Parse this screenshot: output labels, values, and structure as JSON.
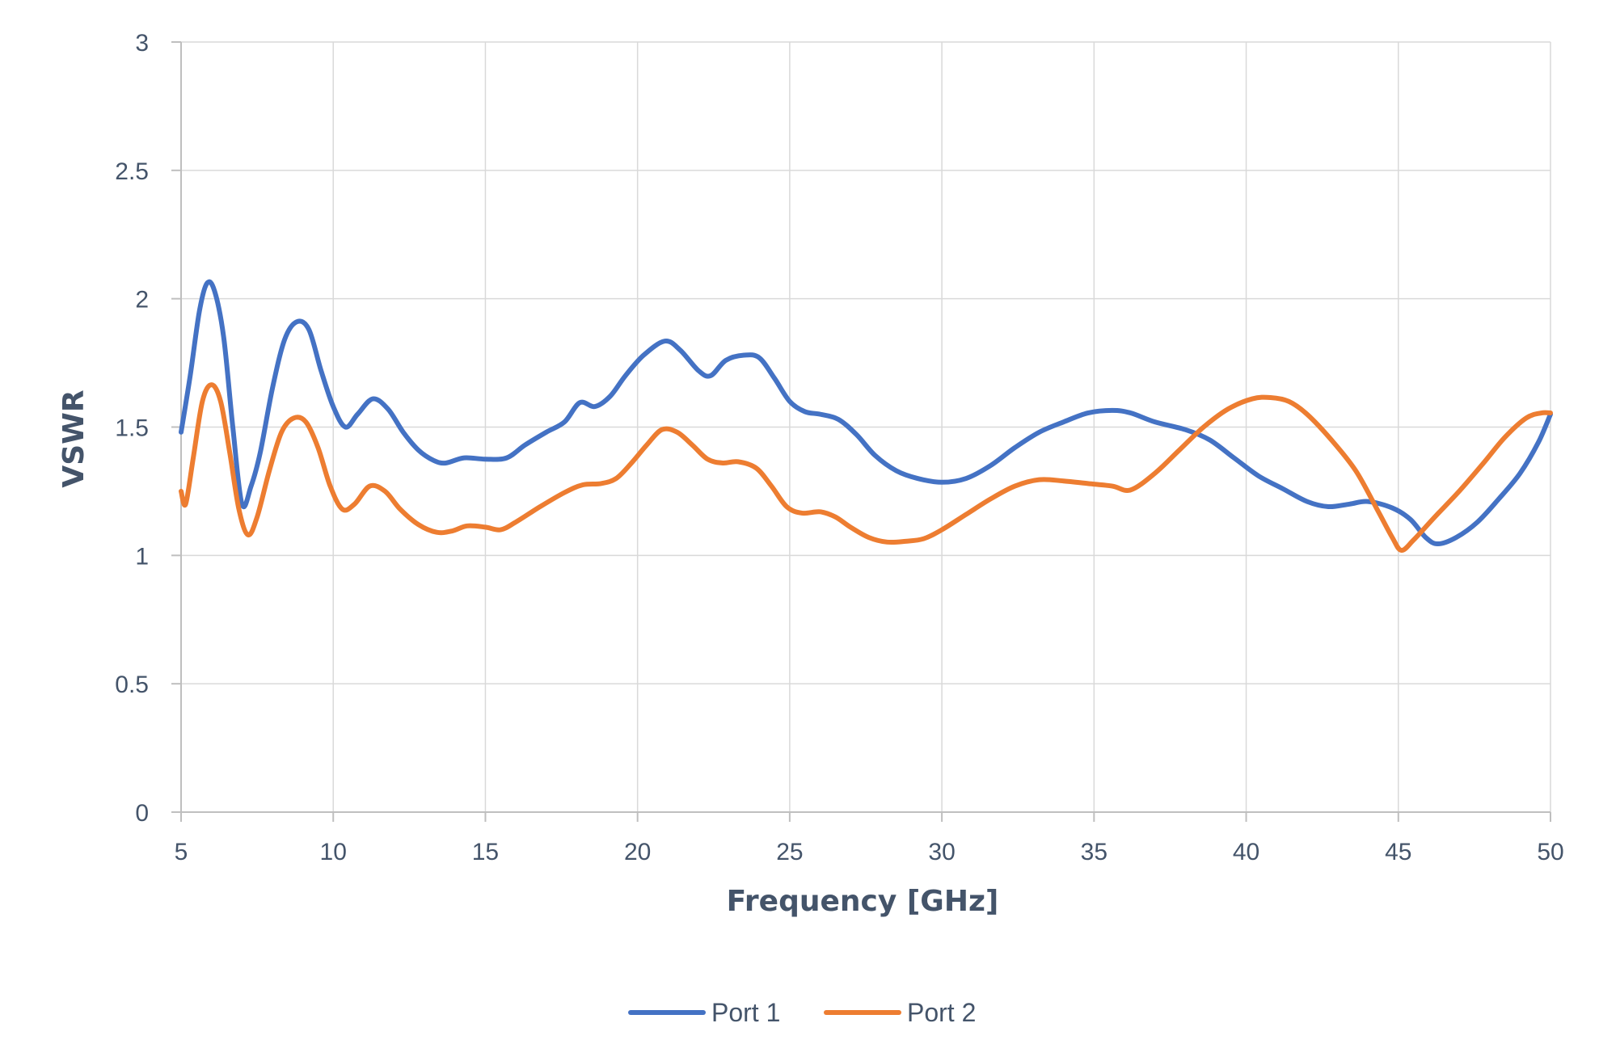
{
  "chart_data": {
    "type": "line",
    "title": "",
    "xlabel": "Frequency [GHz]",
    "ylabel": "VSWR",
    "xlim": [
      5,
      50
    ],
    "ylim": [
      0,
      3
    ],
    "xticks": [
      5,
      10,
      15,
      20,
      25,
      30,
      35,
      40,
      45,
      50
    ],
    "yticks": [
      0,
      0.5,
      1,
      1.5,
      2,
      2.5,
      3
    ],
    "xtick_labels": [
      "5",
      "10",
      "15",
      "20",
      "25",
      "30",
      "35",
      "40",
      "45",
      "50"
    ],
    "ytick_labels": [
      "0",
      "0.5",
      "1",
      "1.5",
      "2",
      "2.5",
      "3"
    ],
    "grid": true,
    "legend_position": "bottom",
    "series": [
      {
        "name": "Port 1",
        "color": "#4472c4",
        "points": [
          [
            5.0,
            1.48
          ],
          [
            5.3,
            1.7
          ],
          [
            5.6,
            1.95
          ],
          [
            5.85,
            2.06
          ],
          [
            6.1,
            2.03
          ],
          [
            6.4,
            1.85
          ],
          [
            6.7,
            1.5
          ],
          [
            7.0,
            1.2
          ],
          [
            7.3,
            1.27
          ],
          [
            7.6,
            1.4
          ],
          [
            8.0,
            1.65
          ],
          [
            8.4,
            1.84
          ],
          [
            8.8,
            1.91
          ],
          [
            9.2,
            1.88
          ],
          [
            9.6,
            1.72
          ],
          [
            10.0,
            1.58
          ],
          [
            10.4,
            1.5
          ],
          [
            10.8,
            1.55
          ],
          [
            11.3,
            1.61
          ],
          [
            11.8,
            1.57
          ],
          [
            12.3,
            1.48
          ],
          [
            12.8,
            1.41
          ],
          [
            13.3,
            1.37
          ],
          [
            13.7,
            1.36
          ],
          [
            14.3,
            1.38
          ],
          [
            15.0,
            1.375
          ],
          [
            15.7,
            1.38
          ],
          [
            16.3,
            1.43
          ],
          [
            17.0,
            1.48
          ],
          [
            17.6,
            1.52
          ],
          [
            18.1,
            1.595
          ],
          [
            18.6,
            1.58
          ],
          [
            19.1,
            1.62
          ],
          [
            19.6,
            1.7
          ],
          [
            20.2,
            1.78
          ],
          [
            20.9,
            1.835
          ],
          [
            21.4,
            1.8
          ],
          [
            22.0,
            1.72
          ],
          [
            22.4,
            1.7
          ],
          [
            22.9,
            1.76
          ],
          [
            23.5,
            1.78
          ],
          [
            24.0,
            1.77
          ],
          [
            24.5,
            1.69
          ],
          [
            25.0,
            1.6
          ],
          [
            25.5,
            1.56
          ],
          [
            26.0,
            1.55
          ],
          [
            26.6,
            1.53
          ],
          [
            27.2,
            1.47
          ],
          [
            27.8,
            1.39
          ],
          [
            28.5,
            1.33
          ],
          [
            29.2,
            1.3
          ],
          [
            30.0,
            1.285
          ],
          [
            30.8,
            1.3
          ],
          [
            31.6,
            1.35
          ],
          [
            32.4,
            1.42
          ],
          [
            33.2,
            1.48
          ],
          [
            34.0,
            1.52
          ],
          [
            34.8,
            1.555
          ],
          [
            35.6,
            1.565
          ],
          [
            36.2,
            1.555
          ],
          [
            37.0,
            1.52
          ],
          [
            38.0,
            1.49
          ],
          [
            38.8,
            1.45
          ],
          [
            39.6,
            1.38
          ],
          [
            40.4,
            1.31
          ],
          [
            41.2,
            1.26
          ],
          [
            42.0,
            1.21
          ],
          [
            42.7,
            1.19
          ],
          [
            43.4,
            1.2
          ],
          [
            44.0,
            1.21
          ],
          [
            44.8,
            1.185
          ],
          [
            45.4,
            1.14
          ],
          [
            45.9,
            1.07
          ],
          [
            46.3,
            1.045
          ],
          [
            46.9,
            1.07
          ],
          [
            47.6,
            1.13
          ],
          [
            48.3,
            1.22
          ],
          [
            49.0,
            1.32
          ],
          [
            49.6,
            1.44
          ],
          [
            50.0,
            1.55
          ]
        ]
      },
      {
        "name": "Port 2",
        "color": "#ed7d31",
        "points": [
          [
            5.0,
            1.25
          ],
          [
            5.15,
            1.2
          ],
          [
            5.4,
            1.38
          ],
          [
            5.7,
            1.6
          ],
          [
            6.0,
            1.665
          ],
          [
            6.3,
            1.6
          ],
          [
            6.6,
            1.4
          ],
          [
            6.9,
            1.18
          ],
          [
            7.2,
            1.08
          ],
          [
            7.5,
            1.15
          ],
          [
            7.9,
            1.33
          ],
          [
            8.3,
            1.48
          ],
          [
            8.7,
            1.535
          ],
          [
            9.1,
            1.52
          ],
          [
            9.5,
            1.42
          ],
          [
            9.9,
            1.27
          ],
          [
            10.3,
            1.18
          ],
          [
            10.7,
            1.2
          ],
          [
            11.2,
            1.27
          ],
          [
            11.7,
            1.25
          ],
          [
            12.2,
            1.18
          ],
          [
            12.8,
            1.12
          ],
          [
            13.4,
            1.09
          ],
          [
            13.9,
            1.095
          ],
          [
            14.4,
            1.115
          ],
          [
            15.0,
            1.11
          ],
          [
            15.5,
            1.1
          ],
          [
            16.0,
            1.13
          ],
          [
            16.8,
            1.19
          ],
          [
            17.6,
            1.245
          ],
          [
            18.2,
            1.275
          ],
          [
            18.8,
            1.28
          ],
          [
            19.3,
            1.3
          ],
          [
            19.8,
            1.36
          ],
          [
            20.3,
            1.43
          ],
          [
            20.8,
            1.49
          ],
          [
            21.3,
            1.48
          ],
          [
            21.8,
            1.43
          ],
          [
            22.3,
            1.375
          ],
          [
            22.8,
            1.36
          ],
          [
            23.3,
            1.365
          ],
          [
            23.9,
            1.34
          ],
          [
            24.4,
            1.27
          ],
          [
            24.9,
            1.19
          ],
          [
            25.4,
            1.165
          ],
          [
            26.0,
            1.17
          ],
          [
            26.5,
            1.15
          ],
          [
            27.0,
            1.11
          ],
          [
            27.6,
            1.07
          ],
          [
            28.2,
            1.052
          ],
          [
            28.8,
            1.055
          ],
          [
            29.4,
            1.065
          ],
          [
            30.0,
            1.1
          ],
          [
            30.8,
            1.16
          ],
          [
            31.6,
            1.22
          ],
          [
            32.4,
            1.27
          ],
          [
            33.2,
            1.295
          ],
          [
            34.0,
            1.29
          ],
          [
            34.8,
            1.28
          ],
          [
            35.6,
            1.27
          ],
          [
            36.2,
            1.255
          ],
          [
            37.0,
            1.32
          ],
          [
            37.8,
            1.41
          ],
          [
            38.6,
            1.5
          ],
          [
            39.4,
            1.57
          ],
          [
            40.2,
            1.61
          ],
          [
            40.8,
            1.615
          ],
          [
            41.4,
            1.6
          ],
          [
            42.0,
            1.55
          ],
          [
            42.8,
            1.45
          ],
          [
            43.6,
            1.33
          ],
          [
            44.3,
            1.18
          ],
          [
            44.8,
            1.07
          ],
          [
            45.1,
            1.02
          ],
          [
            45.5,
            1.06
          ],
          [
            46.2,
            1.15
          ],
          [
            47.0,
            1.25
          ],
          [
            47.8,
            1.36
          ],
          [
            48.5,
            1.46
          ],
          [
            49.2,
            1.535
          ],
          [
            49.7,
            1.555
          ],
          [
            50.0,
            1.555
          ]
        ]
      }
    ]
  }
}
